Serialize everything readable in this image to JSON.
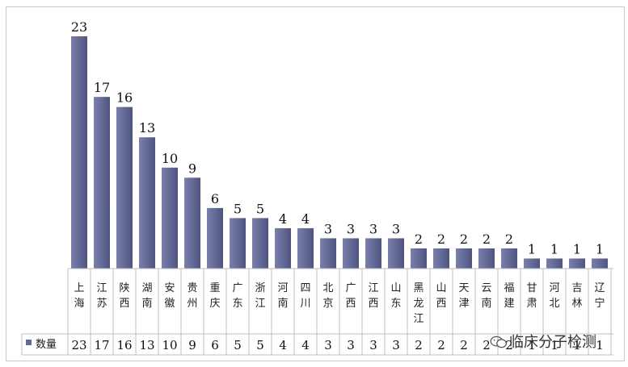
{
  "chart_data": {
    "type": "bar",
    "categories": [
      "上海",
      "江苏",
      "陕西",
      "湖南",
      "安徽",
      "贵州",
      "重庆",
      "广东",
      "浙江",
      "河南",
      "四川",
      "北京",
      "广西",
      "江西",
      "山东",
      "黑龙江",
      "山西",
      "天津",
      "云南",
      "福建",
      "甘肃",
      "河北",
      "吉林",
      "辽宁"
    ],
    "series": [
      {
        "name": "数量",
        "values": [
          23,
          17,
          16,
          13,
          10,
          9,
          6,
          5,
          5,
          4,
          4,
          3,
          3,
          3,
          3,
          2,
          2,
          2,
          2,
          2,
          1,
          1,
          1,
          1
        ],
        "color": "#646a97"
      }
    ],
    "ylim": [
      0,
      23
    ],
    "grid": false,
    "legend_position": "data-table-left",
    "data_labels": true,
    "data_table": true
  },
  "watermark": {
    "text": "临床分子检测",
    "icon": "wechat-icon"
  }
}
